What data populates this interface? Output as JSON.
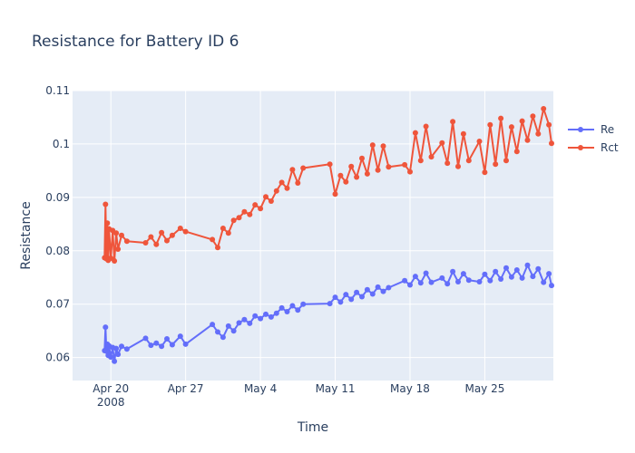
{
  "chart_data": {
    "type": "line",
    "title": "Resistance for Battery ID 6",
    "xlabel": "Time",
    "ylabel": "Resistance",
    "x_range": [
      "2008-04-16T10:00",
      "2008-05-31T10:00"
    ],
    "ylim": [
      0.0557,
      0.11
    ],
    "x_ticks": [
      {
        "date": "2008-04-20",
        "label": "Apr 20",
        "sublabel": "2008"
      },
      {
        "date": "2008-04-27",
        "label": "Apr 27"
      },
      {
        "date": "2008-05-04",
        "label": "May 4"
      },
      {
        "date": "2008-05-11",
        "label": "May 11"
      },
      {
        "date": "2008-05-18",
        "label": "May 18"
      },
      {
        "date": "2008-05-25",
        "label": "May 25"
      }
    ],
    "y_ticks": [
      {
        "value": 0.06,
        "label": "0.06"
      },
      {
        "value": 0.07,
        "label": "0.07"
      },
      {
        "value": 0.08,
        "label": "0.08"
      },
      {
        "value": 0.09,
        "label": "0.09"
      },
      {
        "value": 0.1,
        "label": "0.1"
      },
      {
        "value": 0.11,
        "label": "0.11"
      }
    ],
    "grid": true,
    "legend_position": "top-right",
    "series": [
      {
        "name": "Re",
        "color": "#636efa",
        "x": [
          "2008-04-19T10:00",
          "2008-04-19T12:00",
          "2008-04-19T14:00",
          "2008-04-19T16:00",
          "2008-04-19T18:00",
          "2008-04-19T20:00",
          "2008-04-20T00:00",
          "2008-04-20T04:00",
          "2008-04-20T08:00",
          "2008-04-20T12:00",
          "2008-04-20T16:00",
          "2008-04-21T00:00",
          "2008-04-21T12:00",
          "2008-04-23T06:00",
          "2008-04-23T18:00",
          "2008-04-24T06:00",
          "2008-04-24T18:00",
          "2008-04-25T06:00",
          "2008-04-25T18:00",
          "2008-04-26T12:00",
          "2008-04-27T00:00",
          "2008-04-29T12:00",
          "2008-04-30T00:00",
          "2008-04-30T12:00",
          "2008-05-01T00:00",
          "2008-05-01T12:00",
          "2008-05-02T00:00",
          "2008-05-02T12:00",
          "2008-05-03T00:00",
          "2008-05-03T12:00",
          "2008-05-04T00:00",
          "2008-05-04T12:00",
          "2008-05-05T00:00",
          "2008-05-05T12:00",
          "2008-05-06T00:00",
          "2008-05-06T12:00",
          "2008-05-07T00:00",
          "2008-05-07T12:00",
          "2008-05-08T00:00",
          "2008-05-10T12:00",
          "2008-05-11T00:00",
          "2008-05-11T12:00",
          "2008-05-12T00:00",
          "2008-05-12T12:00",
          "2008-05-13T00:00",
          "2008-05-13T12:00",
          "2008-05-14T00:00",
          "2008-05-14T12:00",
          "2008-05-15T00:00",
          "2008-05-15T12:00",
          "2008-05-16T00:00",
          "2008-05-17T12:00",
          "2008-05-18T00:00",
          "2008-05-18T12:00",
          "2008-05-19T00:00",
          "2008-05-19T12:00",
          "2008-05-20T00:00",
          "2008-05-21T00:00",
          "2008-05-21T12:00",
          "2008-05-22T00:00",
          "2008-05-22T12:00",
          "2008-05-23T00:00",
          "2008-05-23T12:00",
          "2008-05-24T12:00",
          "2008-05-25T00:00",
          "2008-05-25T12:00",
          "2008-05-26T00:00",
          "2008-05-26T12:00",
          "2008-05-27T00:00",
          "2008-05-27T12:00",
          "2008-05-28T00:00",
          "2008-05-28T12:00",
          "2008-05-29T00:00",
          "2008-05-29T12:00",
          "2008-05-30T00:00",
          "2008-05-30T12:00",
          "2008-05-31T00:00",
          "2008-05-31T06:00"
        ],
        "y": [
          0.0613,
          0.0657,
          0.0612,
          0.0625,
          0.0604,
          0.0622,
          0.0601,
          0.0619,
          0.0593,
          0.0617,
          0.0606,
          0.0621,
          0.0616,
          0.0636,
          0.0623,
          0.0627,
          0.0621,
          0.0635,
          0.0624,
          0.064,
          0.0625,
          0.0662,
          0.0648,
          0.0638,
          0.0659,
          0.065,
          0.0665,
          0.0671,
          0.0664,
          0.0678,
          0.0673,
          0.0681,
          0.0676,
          0.0683,
          0.0693,
          0.0686,
          0.0697,
          0.0689,
          0.07,
          0.0701,
          0.0713,
          0.0704,
          0.0718,
          0.0709,
          0.0722,
          0.0714,
          0.0727,
          0.0719,
          0.0732,
          0.0724,
          0.0731,
          0.0744,
          0.0736,
          0.0752,
          0.074,
          0.0758,
          0.0741,
          0.0749,
          0.0738,
          0.0761,
          0.0742,
          0.0757,
          0.0745,
          0.0742,
          0.0756,
          0.0744,
          0.0761,
          0.0747,
          0.0768,
          0.0751,
          0.0764,
          0.0749,
          0.0773,
          0.0752,
          0.0766,
          0.0741,
          0.0757,
          0.0735
        ]
      },
      {
        "name": "Rct",
        "color": "#ef553b",
        "x": [
          "2008-04-19T10:00",
          "2008-04-19T12:00",
          "2008-04-19T14:00",
          "2008-04-19T16:00",
          "2008-04-19T18:00",
          "2008-04-19T20:00",
          "2008-04-20T00:00",
          "2008-04-20T04:00",
          "2008-04-20T08:00",
          "2008-04-20T12:00",
          "2008-04-20T16:00",
          "2008-04-21T00:00",
          "2008-04-21T12:00",
          "2008-04-23T06:00",
          "2008-04-23T18:00",
          "2008-04-24T06:00",
          "2008-04-24T18:00",
          "2008-04-25T06:00",
          "2008-04-25T18:00",
          "2008-04-26T12:00",
          "2008-04-27T00:00",
          "2008-04-29T12:00",
          "2008-04-30T00:00",
          "2008-04-30T12:00",
          "2008-05-01T00:00",
          "2008-05-01T12:00",
          "2008-05-02T00:00",
          "2008-05-02T12:00",
          "2008-05-03T00:00",
          "2008-05-03T12:00",
          "2008-05-04T00:00",
          "2008-05-04T12:00",
          "2008-05-05T00:00",
          "2008-05-05T12:00",
          "2008-05-06T00:00",
          "2008-05-06T12:00",
          "2008-05-07T00:00",
          "2008-05-07T12:00",
          "2008-05-08T00:00",
          "2008-05-10T12:00",
          "2008-05-11T00:00",
          "2008-05-11T12:00",
          "2008-05-12T00:00",
          "2008-05-12T12:00",
          "2008-05-13T00:00",
          "2008-05-13T12:00",
          "2008-05-14T00:00",
          "2008-05-14T12:00",
          "2008-05-15T00:00",
          "2008-05-15T12:00",
          "2008-05-16T00:00",
          "2008-05-17T12:00",
          "2008-05-18T00:00",
          "2008-05-18T12:00",
          "2008-05-19T00:00",
          "2008-05-19T12:00",
          "2008-05-20T00:00",
          "2008-05-21T00:00",
          "2008-05-21T12:00",
          "2008-05-22T00:00",
          "2008-05-22T12:00",
          "2008-05-23T00:00",
          "2008-05-23T12:00",
          "2008-05-24T12:00",
          "2008-05-25T00:00",
          "2008-05-25T12:00",
          "2008-05-26T00:00",
          "2008-05-26T12:00",
          "2008-05-27T00:00",
          "2008-05-27T12:00",
          "2008-05-28T00:00",
          "2008-05-28T12:00",
          "2008-05-29T00:00",
          "2008-05-29T12:00",
          "2008-05-30T00:00",
          "2008-05-30T12:00",
          "2008-05-31T00:00",
          "2008-05-31T06:00"
        ],
        "y": [
          0.0787,
          0.0887,
          0.0785,
          0.0852,
          0.0782,
          0.0841,
          0.0786,
          0.0838,
          0.0781,
          0.0833,
          0.0803,
          0.0829,
          0.0818,
          0.0815,
          0.0826,
          0.0812,
          0.0834,
          0.0819,
          0.0829,
          0.0842,
          0.0836,
          0.0821,
          0.0806,
          0.0842,
          0.0833,
          0.0857,
          0.0862,
          0.0873,
          0.0868,
          0.0886,
          0.0879,
          0.0901,
          0.0893,
          0.0912,
          0.0928,
          0.0917,
          0.0952,
          0.0927,
          0.0955,
          0.0962,
          0.0906,
          0.0941,
          0.0929,
          0.0958,
          0.0938,
          0.0973,
          0.0944,
          0.0998,
          0.0951,
          0.0996,
          0.0957,
          0.0961,
          0.0948,
          0.1021,
          0.0969,
          0.1033,
          0.0976,
          0.1002,
          0.0964,
          0.1042,
          0.0958,
          0.1019,
          0.0969,
          0.1005,
          0.0947,
          0.1036,
          0.0962,
          0.1048,
          0.0969,
          0.1032,
          0.0986,
          0.1043,
          0.1007,
          0.1052,
          0.1019,
          0.1066,
          0.1036,
          0.1001
        ]
      }
    ]
  }
}
